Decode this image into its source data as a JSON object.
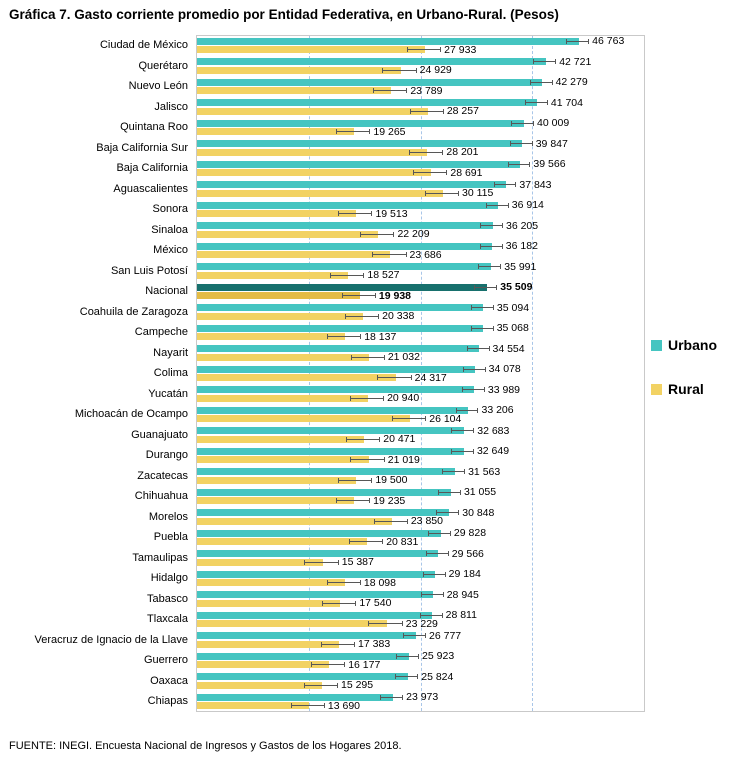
{
  "title": "Gráfica 7. Gasto corriente promedio por Entidad Federativa, en Urbano-Rural. (Pesos)",
  "source": "FUENTE: INEGI. Encuesta Nacional de Ingresos y Gastos de los Hogares 2018.",
  "legend": {
    "urbano": "Urbano",
    "rural": "Rural"
  },
  "colors": {
    "urbano": "#45C5C1",
    "rural": "#F2D263",
    "urbano_nacional": "#17706D",
    "rural_nacional": "#E4BC45",
    "error_bar": "#575757",
    "gridline": "#A9C6E8",
    "plot_border": "#C9C9C9"
  },
  "chart_data": {
    "type": "bar",
    "orientation": "horizontal",
    "axis_max": 55000,
    "grid": true,
    "gridlines_pct": [
      25,
      50,
      75
    ],
    "legend_position": "right",
    "highlight_category": "Nacional",
    "error_margins": {
      "urbano": 1400,
      "rural": 2100
    },
    "categories": [
      "Ciudad de México",
      "Querétaro",
      "Nuevo León",
      "Jalisco",
      "Quintana Roo",
      "Baja California Sur",
      "Baja California",
      "Aguascalientes",
      "Sonora",
      "Sinaloa",
      "México",
      "San Luis Potosí",
      "Nacional",
      "Coahuila de Zaragoza",
      "Campeche",
      "Nayarit",
      "Colima",
      "Yucatán",
      "Michoacán de Ocampo",
      "Guanajuato",
      "Durango",
      "Zacatecas",
      "Chihuahua",
      "Morelos",
      "Puebla",
      "Tamaulipas",
      "Hidalgo",
      "Tabasco",
      "Tlaxcala",
      "Veracruz de Ignacio de la Llave",
      "Guerrero",
      "Oaxaca",
      "Chiapas"
    ],
    "series": [
      {
        "name": "Urbano",
        "values": [
          46763,
          42721,
          42279,
          41704,
          40009,
          39847,
          39566,
          37843,
          36914,
          36205,
          36182,
          35991,
          35509,
          35094,
          35068,
          34554,
          34078,
          33989,
          33206,
          32683,
          32649,
          31563,
          31055,
          30848,
          29828,
          29566,
          29184,
          28945,
          28811,
          26777,
          25923,
          25824,
          23973
        ]
      },
      {
        "name": "Rural",
        "values": [
          27933,
          24929,
          23789,
          28257,
          19265,
          28201,
          28691,
          30115,
          19513,
          22209,
          23686,
          18527,
          19938,
          20338,
          18137,
          21032,
          24317,
          20940,
          26104,
          20471,
          21019,
          19500,
          19235,
          23850,
          20831,
          15387,
          18098,
          17540,
          23229,
          17383,
          16177,
          15295,
          13690
        ]
      }
    ]
  }
}
